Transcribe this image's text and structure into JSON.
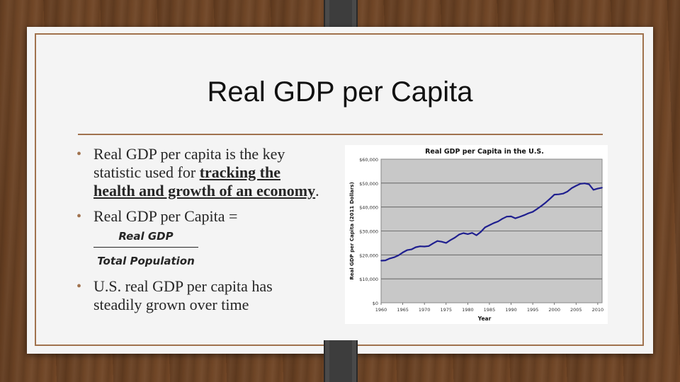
{
  "slide": {
    "title": "Real GDP per Capita",
    "bullets": [
      {
        "text_before": "Real GDP per capita is the key statistic used for ",
        "emphasis": "tracking the health and growth of  an economy",
        "text_after": "."
      },
      {
        "text": "Real GDP per Capita =",
        "numerator": "Real GDP",
        "denominator": "Total Population"
      },
      {
        "text": "U.S. real GDP per capita has steadily grown over time"
      }
    ],
    "bullet_color": "#a0724d"
  },
  "chart_data": {
    "type": "line",
    "title": "Real GDP per Capita in the U.S.",
    "xlabel": "Year",
    "ylabel": "Real GDP per Capita (2011 Dollars)",
    "x_ticks": [
      "1960",
      "1965",
      "1970",
      "1975",
      "1980",
      "1985",
      "1990",
      "1995",
      "2000",
      "2005",
      "2010"
    ],
    "y_ticks": [
      "$0",
      "$10,000",
      "$20,000",
      "$30,000",
      "$40,000",
      "$50,000",
      "$60,000"
    ],
    "xlim": [
      1960,
      2011
    ],
    "ylim": [
      0,
      60000
    ],
    "grid": true,
    "plot_background": "#c8c8c8",
    "line_color": "#1f1f8f",
    "x": [
      1960,
      1961,
      1962,
      1963,
      1964,
      1965,
      1966,
      1967,
      1968,
      1969,
      1970,
      1971,
      1972,
      1973,
      1974,
      1975,
      1976,
      1977,
      1978,
      1979,
      1980,
      1981,
      1982,
      1983,
      1984,
      1985,
      1986,
      1987,
      1988,
      1989,
      1990,
      1991,
      1992,
      1993,
      1994,
      1995,
      1996,
      1997,
      1998,
      1999,
      2000,
      2001,
      2002,
      2003,
      2004,
      2005,
      2006,
      2007,
      2008,
      2009,
      2010,
      2011
    ],
    "values": [
      17600,
      17700,
      18500,
      19000,
      19800,
      21000,
      22000,
      22300,
      23200,
      23600,
      23500,
      23700,
      24800,
      25800,
      25500,
      25000,
      26200,
      27200,
      28500,
      29100,
      28700,
      29200,
      28200,
      29600,
      31500,
      32400,
      33300,
      34000,
      35100,
      36000,
      36100,
      35300,
      35900,
      36600,
      37400,
      38000,
      39200,
      40500,
      41900,
      43500,
      45200,
      45300,
      45600,
      46500,
      47900,
      48900,
      49700,
      49900,
      49500,
      47200,
      47700,
      48100
    ]
  }
}
